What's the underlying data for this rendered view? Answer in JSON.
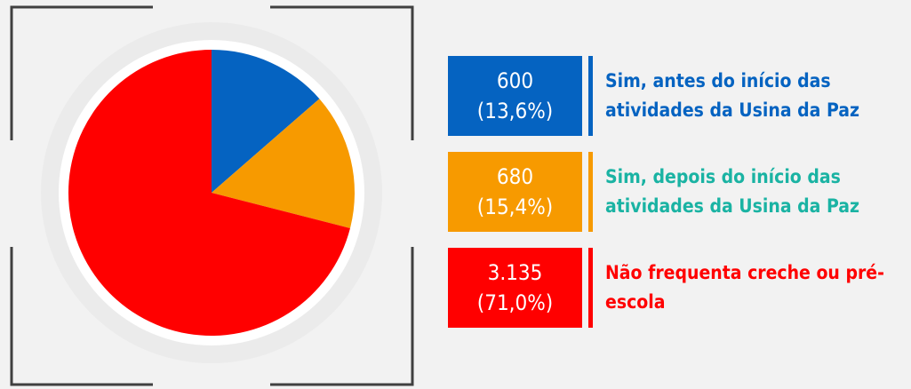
{
  "chart_data": {
    "type": "pie",
    "start_angle_deg": 0,
    "direction": "clockwise",
    "slices": [
      {
        "value": 600,
        "value_label": "600",
        "percent_label": "(13,6%)",
        "label": "Sim, antes do início das atividades da Usina da Paz",
        "color": "#0563c1",
        "label_color": "#0563c1"
      },
      {
        "value": 680,
        "value_label": "680",
        "percent_label": "(15,4%)",
        "label": "Sim, depois do início das atividades da Usina da Paz",
        "color": "#f79a00",
        "label_color": "#1ab3a3"
      },
      {
        "value": 3135,
        "value_label": "3.135",
        "percent_label": "(71,0%)",
        "label": "Não frequenta creche ou pré-escola",
        "color": "#ff0000",
        "label_color": "#ff0000"
      }
    ]
  },
  "colors": {
    "background": "#f2f2f2",
    "frame": "#404040",
    "pie_border": "#ffffff"
  }
}
